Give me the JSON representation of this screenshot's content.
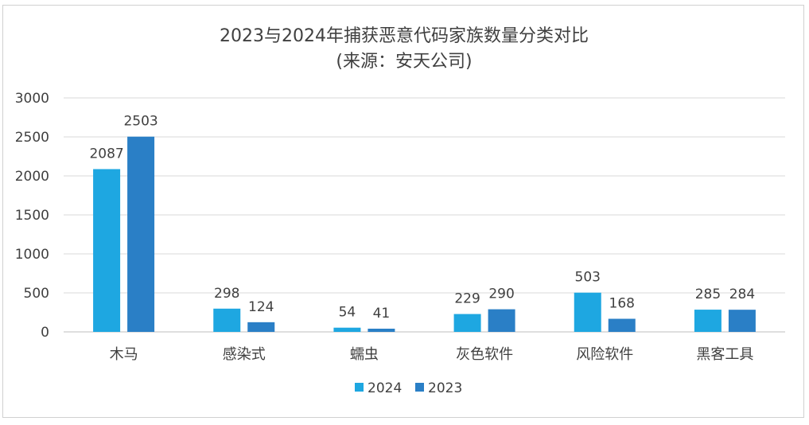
{
  "chart_data": {
    "type": "bar",
    "title_lines": [
      "2023与2024年捕获恶意代码家族数量分类对比",
      "(来源：安天公司)"
    ],
    "categories": [
      "木马",
      "感染式",
      "蠕虫",
      "灰色软件",
      "风险软件",
      "黑客工具"
    ],
    "series": [
      {
        "name": "2024",
        "values": [
          2087,
          298,
          54,
          229,
          503,
          285
        ],
        "color": "#1ea7e1"
      },
      {
        "name": "2023",
        "values": [
          2503,
          124,
          41,
          290,
          168,
          284
        ],
        "color": "#2a7fc6"
      }
    ],
    "ylim": [
      0,
      3000
    ],
    "yticks": [
      0,
      500,
      1000,
      1500,
      2000,
      2500,
      3000
    ],
    "grid": true,
    "legend_position": "bottom-center"
  }
}
